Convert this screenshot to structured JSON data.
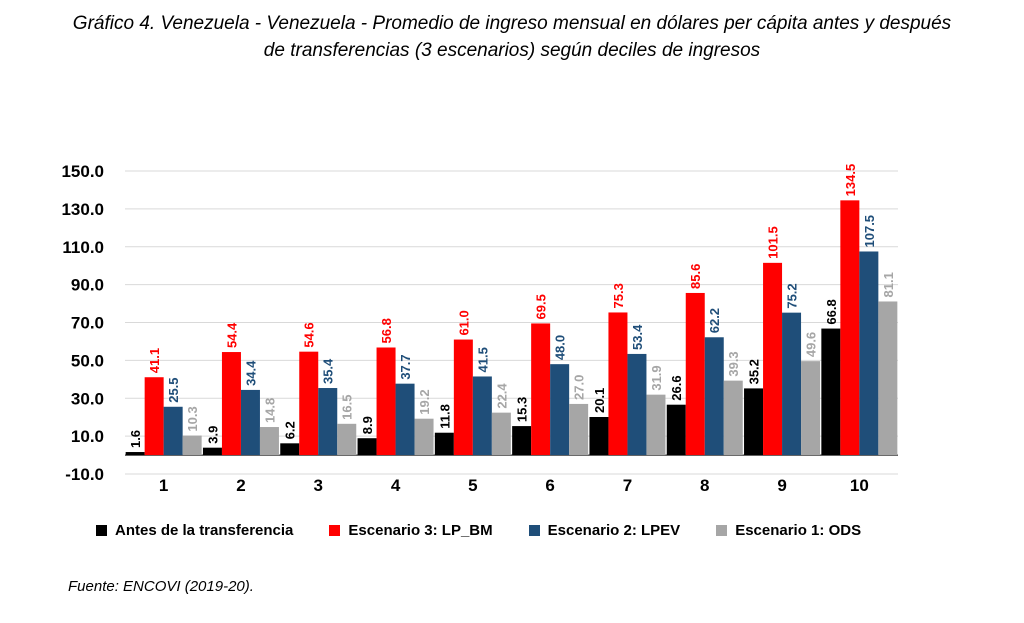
{
  "title_line1": "Gráfico 4. Venezuela - Venezuela - Promedio de ingreso mensual en dólares per cápita antes y después",
  "title_line2": "de transferencias (3 escenarios) según deciles de ingresos",
  "source": "Fuente:  ENCOVI (2019-20).",
  "colors": {
    "antes": "#000000",
    "esc3": "#ff0000",
    "esc2": "#1f4e79",
    "esc1": "#a6a6a6",
    "label_esc2": "#1f4e79",
    "label_esc1": "#a6a6a6",
    "grid": "#d9d9d9"
  },
  "chart_data": {
    "type": "bar",
    "title": "Promedio de ingreso mensual en dólares per cápita antes y después de transferencias (3 escenarios) según deciles de ingresos",
    "categories": [
      "1",
      "2",
      "3",
      "4",
      "5",
      "6",
      "7",
      "8",
      "9",
      "10"
    ],
    "ylim": [
      -10,
      150
    ],
    "yticks": [
      "-10.0",
      "10.0",
      "30.0",
      "50.0",
      "70.0",
      "90.0",
      "110.0",
      "130.0",
      "150.0"
    ],
    "series": [
      {
        "key": "antes",
        "name": "Antes de la transferencia",
        "values": [
          1.6,
          3.9,
          6.2,
          8.9,
          11.8,
          15.3,
          20.1,
          26.6,
          35.2,
          66.8
        ]
      },
      {
        "key": "esc3",
        "name": "Escenario 3: LP_BM",
        "values": [
          41.1,
          54.4,
          54.6,
          56.8,
          61.0,
          69.5,
          75.3,
          85.6,
          101.5,
          134.5
        ]
      },
      {
        "key": "esc2",
        "name": "Escenario 2: LPEV",
        "values": [
          25.5,
          34.4,
          35.4,
          37.7,
          41.5,
          48.0,
          53.4,
          62.2,
          75.2,
          107.5
        ]
      },
      {
        "key": "esc1",
        "name": "Escenario 1: ODS",
        "values": [
          10.3,
          14.8,
          16.5,
          19.2,
          22.4,
          27.0,
          31.9,
          39.3,
          49.6,
          81.1
        ]
      }
    ],
    "legend_position": "bottom",
    "grid": true
  }
}
